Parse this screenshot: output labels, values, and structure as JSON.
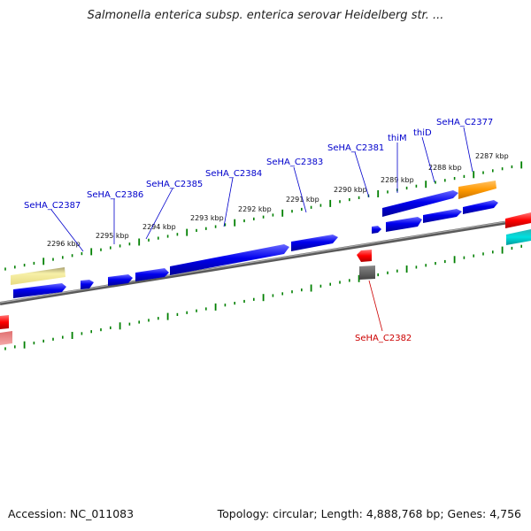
{
  "title": "Salmonella enterica subsp. enterica serovar Heidelberg str. ...",
  "accession": "Accession: NC_011083",
  "summary": "Topology: circular; Length: 4,888,768 bp; Genes: 4,756",
  "colors": {
    "forward_gene": "#0000ee",
    "label_fwd": "#0000cc",
    "label_rev": "#cc0000",
    "backbone": "#808080",
    "ticks": "#008000",
    "orange_feature": "#ff9900",
    "yellow_feature": "#f0e68c",
    "red_feature": "#ff0000",
    "cyan_feature": "#00b5b5",
    "pink_feature": "#f08080",
    "gray_feature": "#555555"
  },
  "kbp_labels": [
    "2296 kbp",
    "2295 kbp",
    "2294 kbp",
    "2293 kbp",
    "2292 kbp",
    "2291 kbp",
    "2290 kbp",
    "2289 kbp",
    "2288 kbp",
    "2287 kbp"
  ],
  "gene_labels": [
    {
      "name": "SeHA_C2387",
      "strand": "forward"
    },
    {
      "name": "SeHA_C2386",
      "strand": "forward"
    },
    {
      "name": "SeHA_C2385",
      "strand": "forward"
    },
    {
      "name": "SeHA_C2384",
      "strand": "forward"
    },
    {
      "name": "SeHA_C2383",
      "strand": "forward"
    },
    {
      "name": "SeHA_C2381",
      "strand": "forward"
    },
    {
      "name": "thiM",
      "strand": "forward"
    },
    {
      "name": "thiD",
      "strand": "forward"
    },
    {
      "name": "SeHA_C2377",
      "strand": "forward"
    },
    {
      "name": "SeHA_C2382",
      "strand": "reverse"
    }
  ]
}
